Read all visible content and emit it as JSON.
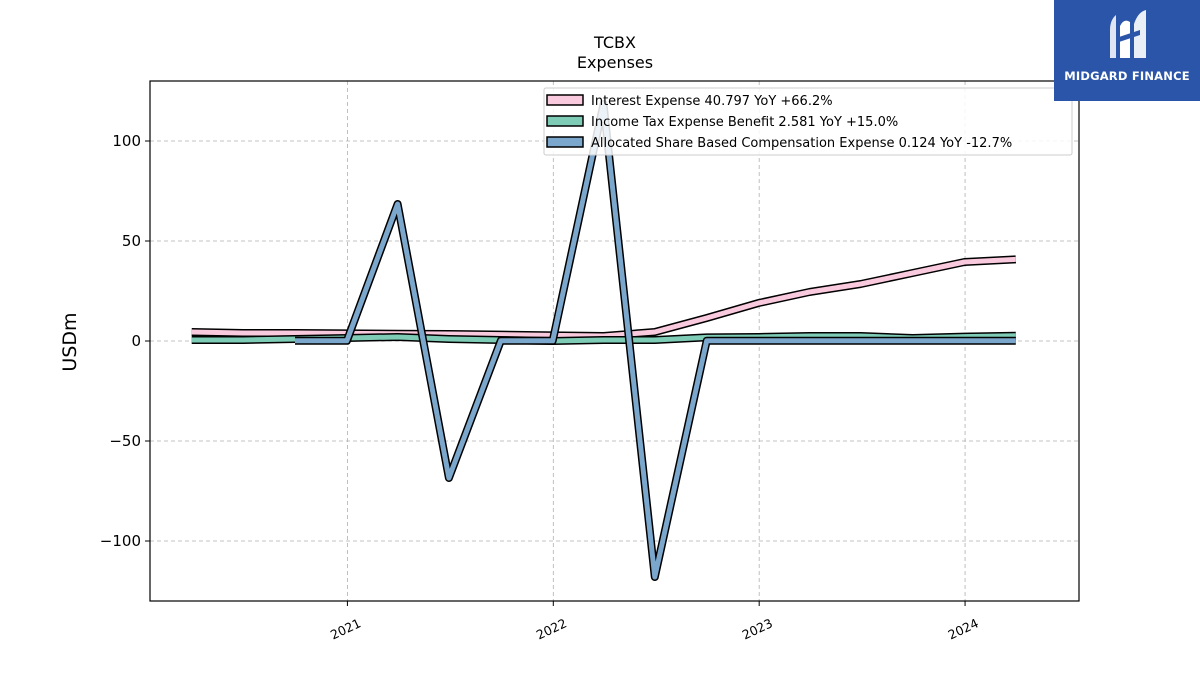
{
  "logo": {
    "brand": "MIDGARD FINANCE",
    "icon": "midgard-m-logo-icon",
    "background": "#2b55a8"
  },
  "chart_data": {
    "type": "line",
    "title": "TCBX",
    "subtitle": "Expenses",
    "xlabel": "",
    "ylabel": "USDm",
    "x_ticks": [
      "2021",
      "2022",
      "2023",
      "2024"
    ],
    "y_ticks": [
      100,
      50,
      0,
      -50,
      -100
    ],
    "y_tick_labels": [
      "100",
      "50",
      "0",
      "−50",
      "−100"
    ],
    "xlim": [
      "2020-01-17",
      "2024-07-21"
    ],
    "ylim": [
      -130,
      130
    ],
    "grid": true,
    "legend_position": "top-right",
    "series": [
      {
        "name": "Interest Expense  40.797 YoY +66.2%",
        "color": "#f9c9dd",
        "x": [
          "2020-03-31",
          "2020-06-30",
          "2020-09-30",
          "2020-12-31",
          "2021-03-31",
          "2021-06-30",
          "2021-09-30",
          "2021-12-31",
          "2022-03-31",
          "2022-06-30",
          "2022-09-30",
          "2022-12-31",
          "2023-03-31",
          "2023-06-30",
          "2023-09-30",
          "2023-12-31",
          "2024-03-31"
        ],
        "values": [
          4.5,
          4.0,
          4.0,
          3.8,
          3.6,
          3.5,
          3.2,
          2.8,
          2.5,
          4.5,
          11.5,
          19.0,
          24.5,
          28.5,
          34.0,
          39.5,
          40.8
        ]
      },
      {
        "name": "Income Tax Expense Benefit  2.581 YoY +15.0%",
        "color": "#7ecbb6",
        "x": [
          "2020-03-31",
          "2020-06-30",
          "2020-09-30",
          "2020-12-31",
          "2021-03-31",
          "2021-06-30",
          "2021-09-30",
          "2021-12-31",
          "2022-03-31",
          "2022-06-30",
          "2022-09-30",
          "2022-12-31",
          "2023-03-31",
          "2023-06-30",
          "2023-09-30",
          "2023-12-31",
          "2024-03-31"
        ],
        "values": [
          0.5,
          0.5,
          1.0,
          1.5,
          2.0,
          1.0,
          0.5,
          0.0,
          0.5,
          0.5,
          1.8,
          2.0,
          2.5,
          2.5,
          1.5,
          2.2,
          2.6
        ]
      },
      {
        "name": "Allocated Share Based Compensation Expense  0.124 YoY -12.7%",
        "color": "#7ba7cc",
        "x": [
          "2020-09-30",
          "2020-12-31",
          "2021-03-31",
          "2021-06-30",
          "2021-09-30",
          "2021-12-31",
          "2022-03-31",
          "2022-06-30",
          "2022-09-30",
          "2022-12-31",
          "2023-03-31",
          "2023-06-30",
          "2023-09-30",
          "2023-12-31",
          "2024-03-31"
        ],
        "values": [
          0.1,
          0.1,
          68.5,
          -68.5,
          0.1,
          0.1,
          118.5,
          -118.0,
          0.1,
          0.1,
          0.1,
          0.1,
          0.1,
          0.1,
          0.124
        ]
      }
    ]
  }
}
